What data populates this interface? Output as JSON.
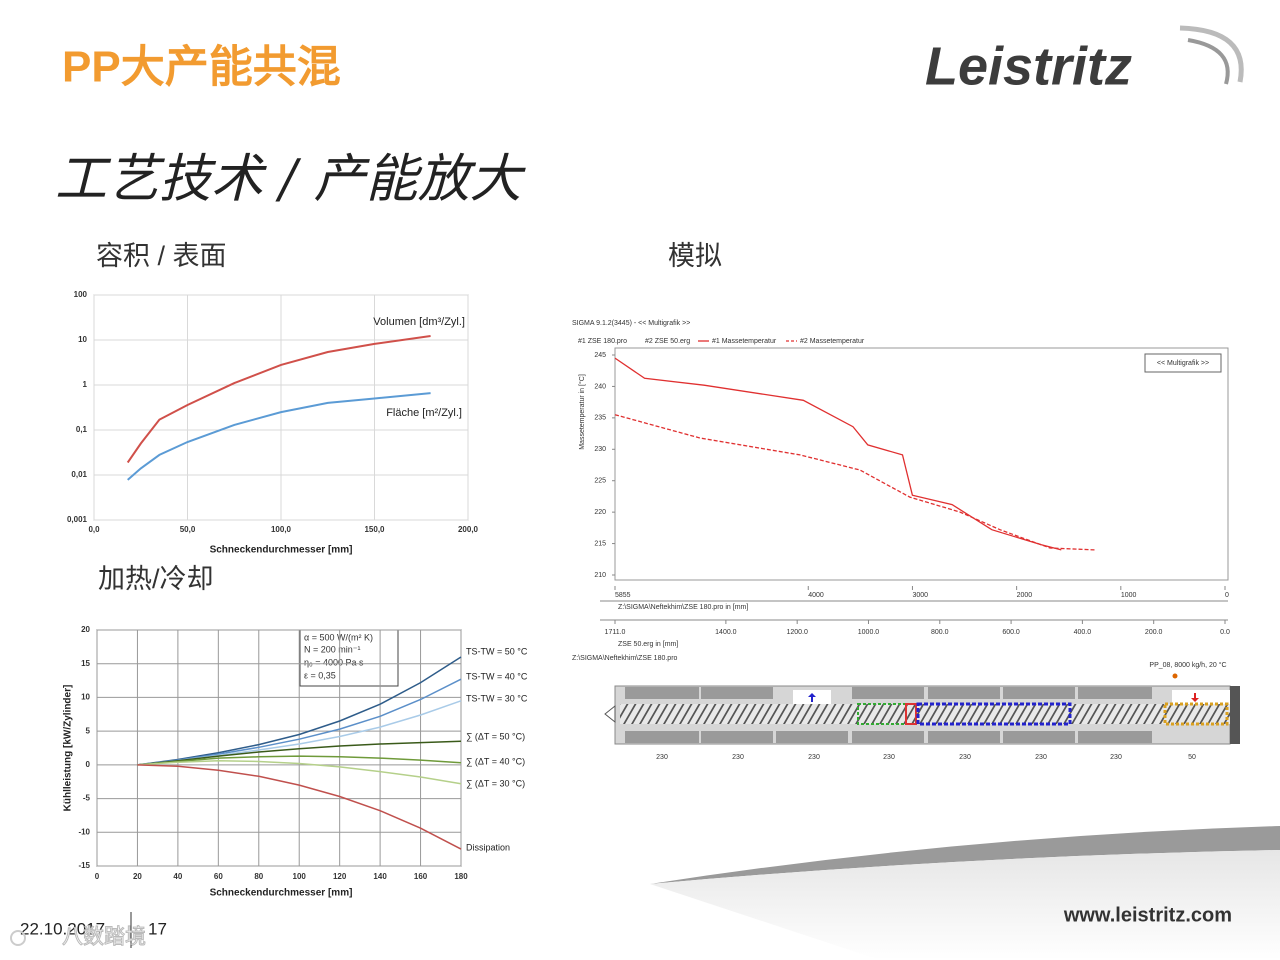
{
  "header": {
    "title": "PP大产能共混",
    "logo": "Leistritz"
  },
  "subtitle": "工艺技术 / 产能放大",
  "sections": [
    "容积 / 表面",
    "模拟",
    "加热/冷却"
  ],
  "chart_data": [
    {
      "type": "line",
      "log_y": true,
      "grid": true,
      "xlabel": "Schneckendurchmesser [mm]",
      "xlim": [
        0,
        200
      ],
      "xticks": [
        {
          "value": 0,
          "label": "0,0"
        },
        {
          "value": 50,
          "label": "50,0"
        },
        {
          "value": 100,
          "label": "100,0"
        },
        {
          "value": 150,
          "label": "150,0"
        },
        {
          "value": 200,
          "label": "200,0"
        }
      ],
      "ylim": [
        0.001,
        100
      ],
      "yticks": [
        {
          "value": 0.001,
          "label": "0,001"
        },
        {
          "value": 0.01,
          "label": "0,01"
        },
        {
          "value": 0.1,
          "label": "0,1"
        },
        1,
        10,
        100
      ],
      "x": [
        18,
        25,
        35,
        50,
        75,
        100,
        125,
        150,
        180
      ],
      "series": [
        {
          "name": "Volumen [dm³/Zyl.]",
          "color": "#d0504a",
          "values": [
            0.019,
            0.05,
            0.17,
            0.36,
            1.1,
            2.8,
            5.4,
            8.2,
            12.3
          ]
        },
        {
          "name": "Fläche [m²/Zyl.]",
          "color": "#5b9bd5",
          "values": [
            0.0078,
            0.014,
            0.028,
            0.054,
            0.13,
            0.25,
            0.4,
            0.5,
            0.66
          ]
        }
      ]
    },
    {
      "type": "line",
      "grid": true,
      "xlabel": "Schneckendurchmesser [mm]",
      "ylabel": "Kühlleistung [kW/Zylinder]",
      "annotations": [
        "α = 500 W/(m² K)",
        "N = 200 min⁻¹",
        "η₀ = 4000 Pa s",
        "ε = 0,35"
      ],
      "xlim": [
        0,
        180
      ],
      "xticks": [
        0,
        20,
        40,
        60,
        80,
        100,
        120,
        140,
        160,
        180
      ],
      "ylim": [
        -15,
        20
      ],
      "yticks": [
        -15,
        -10,
        -5,
        0,
        5,
        10,
        15,
        20
      ],
      "x": [
        20,
        40,
        60,
        80,
        100,
        120,
        140,
        160,
        180
      ],
      "series": [
        {
          "name": "TS-TW = 50 °C",
          "color": "#2e5c8a",
          "values": [
            0,
            0.8,
            1.8,
            3,
            4.5,
            6.5,
            9,
            12.2,
            16
          ]
        },
        {
          "name": "TS-TW = 40 °C",
          "color": "#5b8fc9",
          "values": [
            0,
            0.7,
            1.6,
            2.6,
            3.8,
            5.3,
            7.2,
            9.7,
            12.7
          ]
        },
        {
          "name": "TS-TW = 30 °C",
          "color": "#a9cbe8",
          "values": [
            0,
            0.6,
            1.4,
            2.2,
            3.1,
            4.2,
            5.6,
            7.4,
            9.5
          ]
        },
        {
          "name": "∑ (ΔT = 50 °C)",
          "color": "#3a5a1a",
          "values": [
            0,
            0.6,
            1.3,
            1.9,
            2.4,
            2.8,
            3.1,
            3.3,
            3.5
          ]
        },
        {
          "name": "∑ (ΔT = 40 °C)",
          "color": "#6f9a3a",
          "values": [
            0,
            0.5,
            1.0,
            1.2,
            1.3,
            1.2,
            1.0,
            0.7,
            0.3
          ]
        },
        {
          "name": "∑ (ΔT = 30 °C)",
          "color": "#b5d08a",
          "values": [
            0,
            0.4,
            0.6,
            0.5,
            0.2,
            -0.3,
            -1.0,
            -1.8,
            -2.8
          ]
        },
        {
          "name": "Dissipation",
          "color": "#c0504d",
          "values": [
            0,
            -0.2,
            -0.8,
            -1.7,
            -3,
            -4.7,
            -6.8,
            -9.4,
            -12.5
          ]
        }
      ]
    },
    {
      "type": "line",
      "grid": false,
      "title": "SIGMA 9.1.2(3445)  - << Multigrafik >>",
      "button": "<< Multigrafik >>",
      "files": [
        "#1 ZSE 180.pro",
        "#2 ZSE 50.erg"
      ],
      "ylabel": "Massetemperatur in [°C]",
      "xlabel": "Z:\\SIGMA\\Neftekhim\\ZSE 180.pro in [mm]",
      "x2label": "ZSE 50.erg in [mm]",
      "xlim": [
        5855,
        0
      ],
      "xticks": [
        5855,
        4000,
        3000,
        2000,
        1000,
        0
      ],
      "x2lim": [
        1711,
        0
      ],
      "x2ticks": [
        {
          "value": 1711,
          "label": "1711.0"
        },
        {
          "value": 1400,
          "label": "1400.0"
        },
        {
          "value": 1200,
          "label": "1200.0"
        },
        {
          "value": 1000,
          "label": "1000.0"
        },
        {
          "value": 800,
          "label": "800.0"
        },
        {
          "value": 600,
          "label": "600.0"
        },
        {
          "value": 400,
          "label": "400.0"
        },
        {
          "value": 200,
          "label": "200.0"
        },
        {
          "value": 0,
          "label": "0.0"
        }
      ],
      "ylim": [
        210,
        245
      ],
      "yticks": [
        245,
        240,
        235,
        230,
        225,
        220,
        215,
        210
      ],
      "series": [
        {
          "name": "#1 Massetemperatur",
          "color": "#e03030",
          "x": [
            5855,
            5571,
            5000,
            4048,
            3571,
            3429,
            3095,
            3000,
            2619,
            2238,
            1762,
            1571
          ],
          "values": [
            244.5,
            241.3,
            240.2,
            237.8,
            233.6,
            230.7,
            229.1,
            222.7,
            221.2,
            217.2,
            214.8,
            214.0
          ]
        },
        {
          "name": "#2 Massetemperatur",
          "color": "#e03030",
          "dash": true,
          "axis": "x2",
          "x": [
            1711,
            1473,
            1192,
            1024,
            884,
            743,
            631,
            491,
            365
          ],
          "values": [
            235.5,
            231.8,
            229.1,
            226.7,
            222.4,
            220,
            217.2,
            214.3,
            214.0
          ]
        }
      ]
    }
  ],
  "screw": {
    "path": "Z:\\SIGMA\\Neftekhim\\ZSE 180.pro",
    "operating_point": "PP_08, 8000 kg/h, 20 °C",
    "zone_temps": [
      230,
      230,
      230,
      230,
      230,
      230,
      230,
      50
    ]
  },
  "footer": {
    "date": "22.10.2017",
    "page": "17",
    "url": "www.leistritz.com",
    "watermark": "八数踏境"
  }
}
